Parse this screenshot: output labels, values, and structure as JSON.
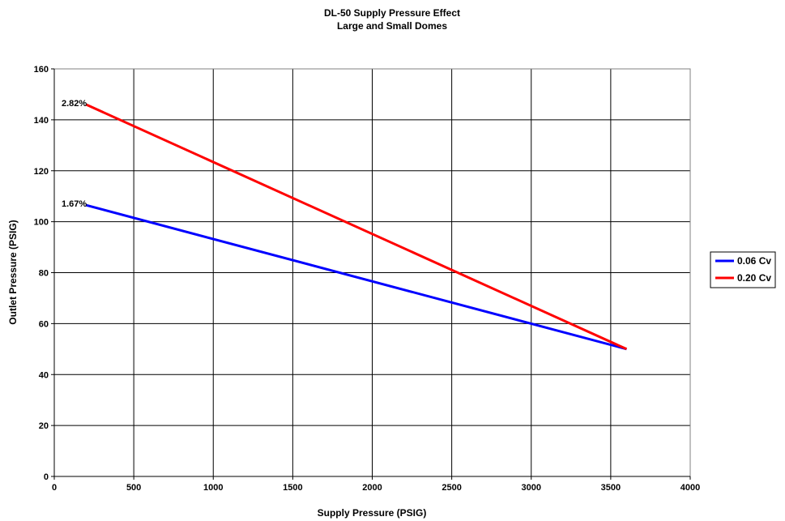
{
  "chart_data": {
    "type": "line",
    "title": "DL-50 Supply Pressure Effect",
    "subtitle": "Large and Small Domes",
    "xlabel": "Supply Pressure (PSIG)",
    "ylabel": "Outlet Pressure (PSIG)",
    "xlim": [
      0,
      4000
    ],
    "ylim": [
      0,
      160
    ],
    "xticks": [
      0,
      500,
      1000,
      1500,
      2000,
      2500,
      3000,
      3500,
      4000
    ],
    "yticks": [
      0,
      20,
      40,
      60,
      80,
      100,
      120,
      140,
      160
    ],
    "grid": true,
    "legend_position": "right",
    "series": [
      {
        "name": "0.06 Cv",
        "color": "#0000ff",
        "x": [
          200,
          3600
        ],
        "y": [
          106.5,
          50
        ]
      },
      {
        "name": "0.20 Cv",
        "color": "#ff0000",
        "x": [
          200,
          3600
        ],
        "y": [
          146,
          50
        ]
      }
    ],
    "annotations": [
      {
        "text": "2.82%",
        "x": 0,
        "y": 146
      },
      {
        "text": "1.67%",
        "x": 0,
        "y": 106.5
      }
    ]
  }
}
